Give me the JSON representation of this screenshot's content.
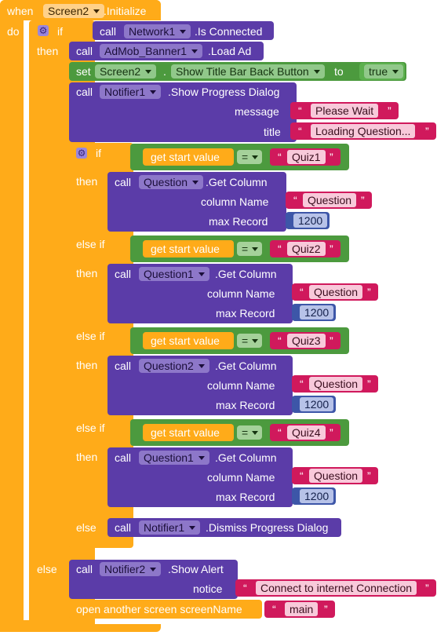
{
  "event": {
    "when": "when",
    "component": "Screen2",
    "event": ".Initialize",
    "do": "do"
  },
  "outer_if": {
    "if": "if",
    "then": "then",
    "else": "else"
  },
  "network": {
    "call": "call",
    "component": "Network1",
    "method": ".Is Connected"
  },
  "admob": {
    "call": "call",
    "component": "AdMob_Banner1",
    "method": ".Load Ad"
  },
  "setter": {
    "set": "set",
    "component": "Screen2",
    "dot": ".",
    "property": "Show Title Bar Back Button",
    "to": "to",
    "value": "true"
  },
  "progress": {
    "call": "call",
    "component": "Notifier1",
    "method": ".Show Progress Dialog",
    "message_label": "message",
    "message": "Please Wait",
    "title_label": "title",
    "title": "Loading Question..."
  },
  "inner_if": {
    "if": "if",
    "else_if": "else if",
    "then": "then",
    "else": "else"
  },
  "branches": [
    {
      "cond": "get start value",
      "op": "=",
      "quiz": "Quiz1",
      "call": "call",
      "component": "Question",
      "method": ".Get Column",
      "col_label": "column Name",
      "col": "Question",
      "max_label": "max Record",
      "max": "1200"
    },
    {
      "cond": "get start value",
      "op": "=",
      "quiz": "Quiz2",
      "call": "call",
      "component": "Question1",
      "method": ".Get Column",
      "col_label": "column Name",
      "col": "Question",
      "max_label": "max Record",
      "max": "1200"
    },
    {
      "cond": "get start value",
      "op": "=",
      "quiz": "Quiz3",
      "call": "call",
      "component": "Question2",
      "method": ".Get Column",
      "col_label": "column Name",
      "col": "Question",
      "max_label": "max Record",
      "max": "1200"
    },
    {
      "cond": "get start value",
      "op": "=",
      "quiz": "Quiz4",
      "call": "call",
      "component": "Question1",
      "method": ".Get Column",
      "col_label": "column Name",
      "col": "Question",
      "max_label": "max Record",
      "max": "1200"
    }
  ],
  "dismiss": {
    "call": "call",
    "component": "Notifier1",
    "method": ".Dismiss Progress Dialog"
  },
  "alert": {
    "call": "call",
    "component": "Notifier2",
    "method": ".Show Alert",
    "notice_label": "notice",
    "notice": "Connect to internet Connection"
  },
  "open_screen": {
    "label": "open another screen  screenName",
    "value": "main"
  },
  "colors": {
    "event": "#FFAB19",
    "control": "#FFAB19",
    "component": "#5B3CA8",
    "logic": "#4C9A3E",
    "text": "#D0195C",
    "math": "#3D56A8"
  }
}
